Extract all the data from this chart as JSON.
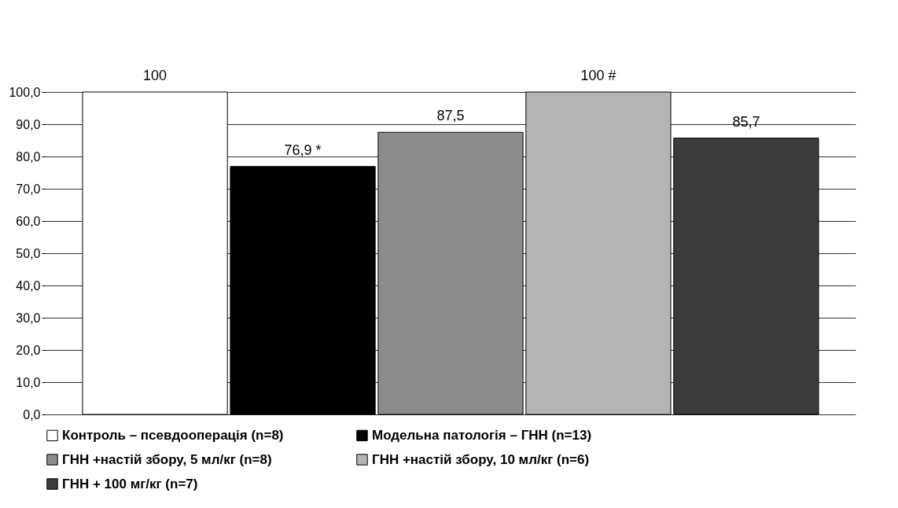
{
  "chart_data": {
    "type": "bar",
    "categories": [
      null
    ],
    "series": [
      {
        "name": "Контроль – псевдооперація (n=8)",
        "color": "#ffffff",
        "values": [
          100
        ],
        "value_labels": [
          "100"
        ]
      },
      {
        "name": "Модельна патологія – ГНН (n=13)",
        "color": "#000000",
        "values": [
          76.9
        ],
        "value_labels": [
          "76,9 *"
        ]
      },
      {
        "name": "ГНН +настій збору, 5 мл/кг (n=8)",
        "color": "#8c8c8c",
        "values": [
          87.5
        ],
        "value_labels": [
          "87,5"
        ]
      },
      {
        "name": "ГНН +настій збору, 10 мл/кг (n=6)",
        "color": "#b4b4b4",
        "values": [
          100
        ],
        "value_labels": [
          "100 #"
        ]
      },
      {
        "name": "ГНН + 100 мг/кг (n=7)",
        "color": "#3c3c3c",
        "values": [
          85.7
        ],
        "value_labels": [
          "85,7"
        ]
      }
    ],
    "ylim": [
      0,
      100
    ],
    "yticks": [
      {
        "value": 0,
        "label": "0,0"
      },
      {
        "value": 10,
        "label": "10,0"
      },
      {
        "value": 20,
        "label": "20,0"
      },
      {
        "value": 30,
        "label": "30,0"
      },
      {
        "value": 40,
        "label": "40,0"
      },
      {
        "value": 50,
        "label": "50,0"
      },
      {
        "value": 60,
        "label": "60,0"
      },
      {
        "value": 70,
        "label": "70,0"
      },
      {
        "value": 80,
        "label": "80,0"
      },
      {
        "value": 90,
        "label": "90,0"
      },
      {
        "value": 100,
        "label": "100,0"
      }
    ],
    "grid": "y",
    "legend": "bottom"
  }
}
